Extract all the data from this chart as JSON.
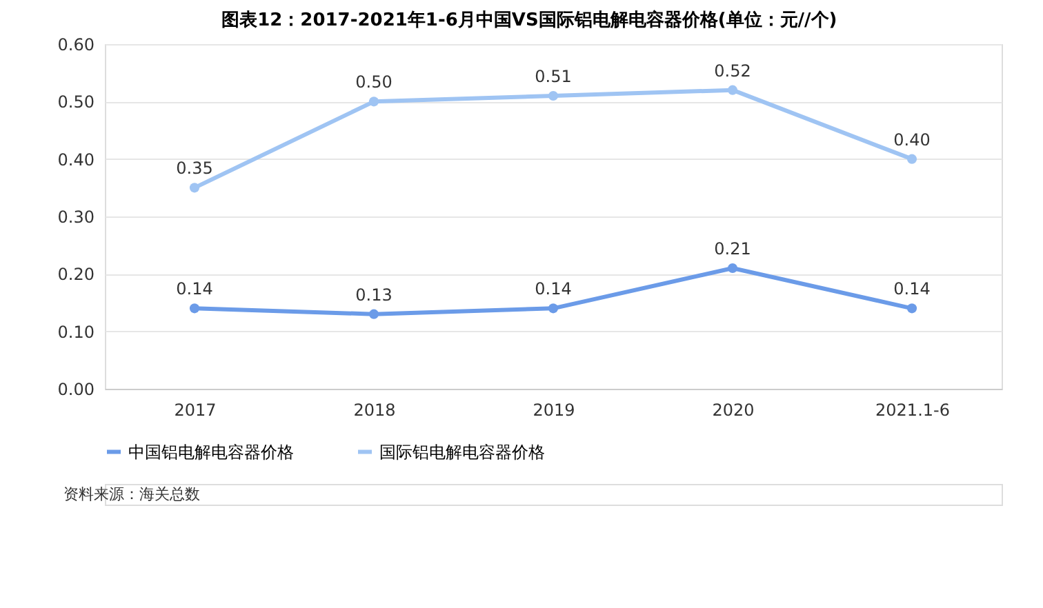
{
  "chart_data": {
    "type": "line",
    "title": "图表12：2017-2021年1-6月中国VS国际铝电解电容器价格(单位：元//个)",
    "categories": [
      "2017",
      "2018",
      "2019",
      "2020",
      "2021.1-6"
    ],
    "series": [
      {
        "name": "中国铝电解电容器价格",
        "color": "#6b9be8",
        "values": [
          0.14,
          0.13,
          0.14,
          0.21,
          0.14
        ],
        "value_labels": [
          "0.14",
          "0.13",
          "0.14",
          "0.21",
          "0.14"
        ]
      },
      {
        "name": "国际铝电解电容器价格",
        "color": "#9fc4f3",
        "values": [
          0.35,
          0.5,
          0.51,
          0.52,
          0.4
        ],
        "value_labels": [
          "0.35",
          "0.50",
          "0.51",
          "0.52",
          "0.40"
        ]
      }
    ],
    "ylim": [
      0,
      0.6
    ],
    "yticks": [
      {
        "value": 0,
        "label": "0.00"
      },
      {
        "value": 0.1,
        "label": "0.10"
      },
      {
        "value": 0.2,
        "label": "0.20"
      },
      {
        "value": 0.3,
        "label": "0.30"
      },
      {
        "value": 0.4,
        "label": "0.40"
      },
      {
        "value": 0.5,
        "label": "0.50"
      },
      {
        "value": 0.6,
        "label": "0.60"
      }
    ],
    "grid": "y",
    "legend": "bottom",
    "marker": "circle",
    "line_style": "solid",
    "annotations": [
      "资料来源：海关总数"
    ]
  }
}
